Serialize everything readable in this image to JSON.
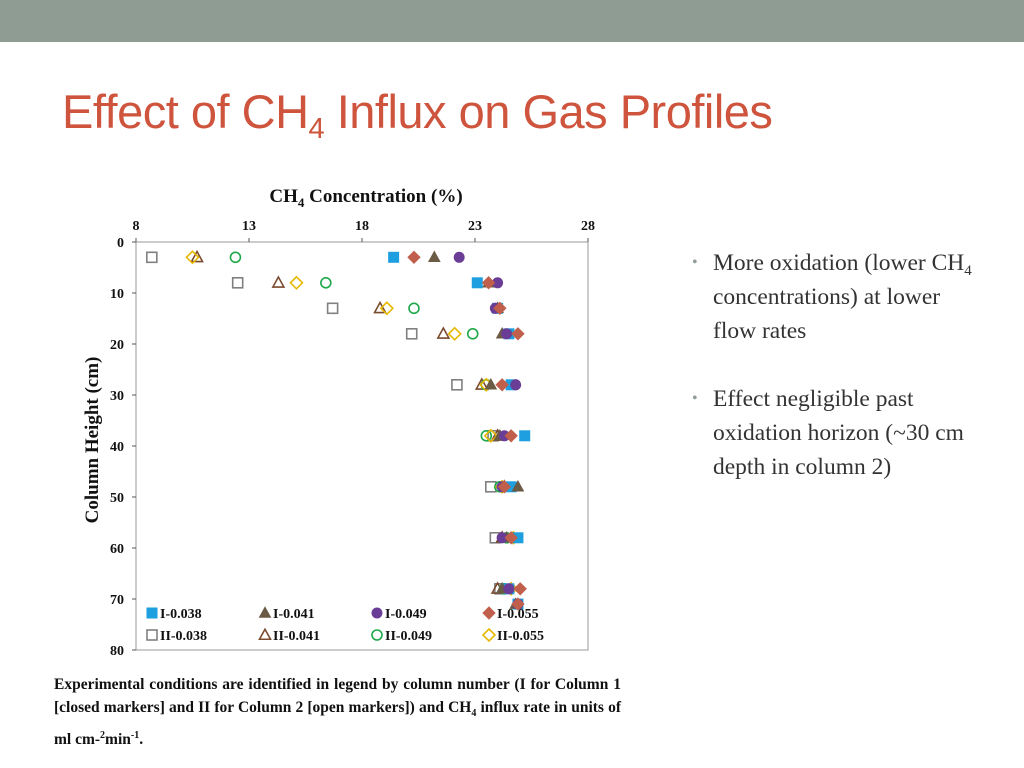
{
  "slide": {
    "title_main": "Effect of CH",
    "title_sub": "4",
    "title_rest": " Influx on Gas Profiles"
  },
  "bullets": [
    {
      "pre": "More oxidation (lower CH",
      "sub": "4",
      "post": " concentrations) at lower flow rates"
    },
    {
      "pre": "Effect negligible past oxidation horizon (~30 cm depth in column 2)",
      "sub": "",
      "post": ""
    }
  ],
  "caption": {
    "part1": "Experimental conditions are identified in legend by column number (I for Column 1 [closed markers] and II for Column 2 [open markers]) and CH",
    "sub": "4",
    "part2": " influx rate in units of ml cm-",
    "sup1": "2",
    "part3": "min",
    "sup2": "-1",
    "part4": "."
  },
  "chart_data": {
    "type": "scatter",
    "title": "CH4 Concentration (%)",
    "xlabel": "CH4 Concentration (%)",
    "ylabel": "Column Height (cm)",
    "xlim": [
      8,
      28
    ],
    "ylim": [
      0,
      80
    ],
    "y_inverted": true,
    "x_axis_position": "top",
    "x_ticks": [
      8,
      13,
      18,
      23,
      28
    ],
    "y_ticks": [
      0,
      10,
      20,
      30,
      40,
      50,
      60,
      70,
      80
    ],
    "legend_position": "bottom",
    "series": [
      {
        "name": "I-0.038",
        "marker": "square",
        "filled": true,
        "color": "#1e9fe0",
        "points": [
          [
            19.4,
            3
          ],
          [
            23.1,
            8
          ],
          [
            24.0,
            13
          ],
          [
            24.5,
            18
          ],
          [
            24.6,
            28
          ],
          [
            25.2,
            38
          ],
          [
            24.6,
            48
          ],
          [
            24.9,
            58
          ],
          [
            24.5,
            68
          ],
          [
            24.9,
            71
          ]
        ]
      },
      {
        "name": "I-0.041",
        "marker": "triangle",
        "filled": true,
        "color": "#6b5a44",
        "points": [
          [
            21.2,
            3
          ],
          [
            23.6,
            8
          ],
          [
            24.0,
            13
          ],
          [
            24.2,
            18
          ],
          [
            23.7,
            28
          ],
          [
            24.1,
            38
          ],
          [
            24.9,
            48
          ],
          [
            24.4,
            58
          ],
          [
            24.2,
            68
          ],
          [
            24.8,
            71
          ]
        ]
      },
      {
        "name": "I-0.049",
        "marker": "circle",
        "filled": true,
        "color": "#6a3d96",
        "points": [
          [
            22.3,
            3
          ],
          [
            24.0,
            8
          ],
          [
            23.9,
            13
          ],
          [
            24.4,
            18
          ],
          [
            24.8,
            28
          ],
          [
            24.3,
            38
          ],
          [
            24.2,
            48
          ],
          [
            24.2,
            58
          ],
          [
            24.5,
            68
          ],
          [
            24.9,
            71
          ]
        ]
      },
      {
        "name": "I-0.055",
        "marker": "diamond",
        "filled": true,
        "color": "#c0604c",
        "points": [
          [
            20.3,
            3
          ],
          [
            23.6,
            8
          ],
          [
            24.1,
            13
          ],
          [
            24.9,
            18
          ],
          [
            24.2,
            28
          ],
          [
            24.6,
            38
          ],
          [
            24.3,
            48
          ],
          [
            24.6,
            58
          ],
          [
            25.0,
            68
          ],
          [
            24.9,
            71
          ]
        ]
      },
      {
        "name": "II-0.038",
        "marker": "square",
        "filled": false,
        "color": "#808080",
        "points": [
          [
            8.7,
            3
          ],
          [
            12.5,
            8
          ],
          [
            16.7,
            13
          ],
          [
            20.2,
            18
          ],
          [
            22.2,
            28
          ],
          [
            23.8,
            38
          ],
          [
            23.7,
            48
          ],
          [
            23.9,
            58
          ],
          [
            24.1,
            68
          ]
        ]
      },
      {
        "name": "II-0.041",
        "marker": "triangle",
        "filled": false,
        "color": "#7a4a2e",
        "points": [
          [
            10.7,
            3
          ],
          [
            14.3,
            8
          ],
          [
            18.8,
            13
          ],
          [
            21.6,
            18
          ],
          [
            23.3,
            28
          ],
          [
            24.0,
            38
          ],
          [
            24.3,
            48
          ],
          [
            24.2,
            58
          ],
          [
            24.0,
            68
          ]
        ]
      },
      {
        "name": "II-0.049",
        "marker": "circle",
        "filled": false,
        "color": "#1ea84a",
        "points": [
          [
            12.4,
            3
          ],
          [
            16.4,
            8
          ],
          [
            20.3,
            13
          ],
          [
            22.9,
            18
          ],
          [
            23.5,
            28
          ],
          [
            23.5,
            38
          ],
          [
            24.1,
            48
          ],
          [
            24.4,
            58
          ],
          [
            24.3,
            68
          ]
        ]
      },
      {
        "name": "II-0.055",
        "marker": "diamond",
        "filled": false,
        "color": "#e6b800",
        "points": [
          [
            10.5,
            3
          ],
          [
            15.1,
            8
          ],
          [
            19.1,
            13
          ],
          [
            22.1,
            18
          ],
          [
            23.5,
            28
          ],
          [
            23.7,
            38
          ],
          [
            24.2,
            48
          ],
          [
            24.7,
            58
          ],
          [
            24.6,
            68
          ]
        ]
      }
    ]
  }
}
